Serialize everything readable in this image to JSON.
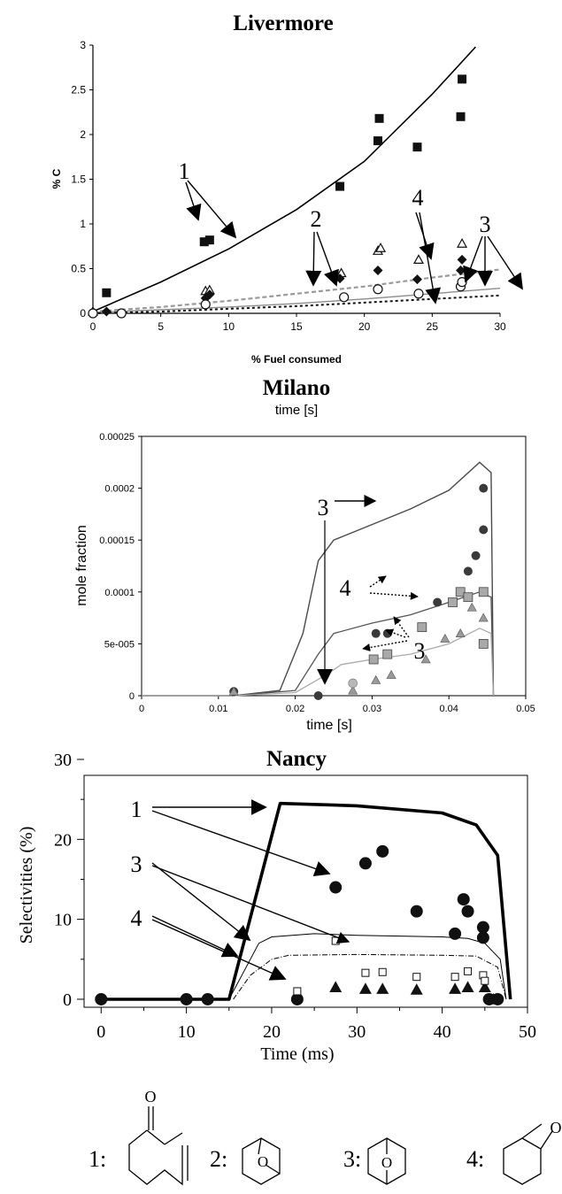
{
  "chart_data": [
    {
      "id": "livermore",
      "type": "scatter",
      "title": "Livermore",
      "xlabel": "% Fuel consumed",
      "ylabel": "% C",
      "xlim": [
        0,
        30
      ],
      "ylim": [
        0,
        3
      ],
      "xticks": [
        "0",
        "5",
        "10",
        "15",
        "20",
        "25",
        "30"
      ],
      "yticks": [
        "0",
        "0.5",
        "1",
        "1.5",
        "2",
        "2.5",
        "3"
      ],
      "series": [
        {
          "marker": "filled-square",
          "x": [
            1,
            8.2,
            8.6,
            18.2,
            21,
            21.1,
            23.9,
            27.1,
            27.2
          ],
          "y": [
            0.23,
            0.8,
            0.82,
            1.42,
            1.93,
            2.18,
            1.86,
            2.2,
            2.62
          ]
        },
        {
          "marker": "open-triangle",
          "x": [
            0,
            8.3,
            8.6,
            18.3,
            21,
            21.2,
            24,
            27.2
          ],
          "y": [
            0.02,
            0.25,
            0.26,
            0.45,
            0.7,
            0.73,
            0.6,
            0.78
          ]
        },
        {
          "marker": "filled-diamond",
          "x": [
            1,
            8.3,
            8.6,
            18.2,
            21,
            23.9,
            27.1,
            27.2
          ],
          "y": [
            0.02,
            0.17,
            0.21,
            0.39,
            0.48,
            0.38,
            0.48,
            0.6
          ]
        },
        {
          "marker": "open-circle",
          "x": [
            0,
            2.1,
            8.3,
            18.5,
            21,
            24,
            27.1,
            27.2
          ],
          "y": [
            0,
            0,
            0.1,
            0.18,
            0.27,
            0.22,
            0.3,
            0.35
          ]
        }
      ],
      "curves": [
        {
          "style": "solid-black",
          "x": [
            0,
            5,
            10,
            15,
            20,
            25,
            28.2
          ],
          "y": [
            0.02,
            0.35,
            0.72,
            1.16,
            1.7,
            2.45,
            2.98
          ]
        },
        {
          "style": "dashed-gray",
          "x": [
            0,
            5,
            10,
            15,
            20,
            25,
            30
          ],
          "y": [
            0.02,
            0.07,
            0.14,
            0.22,
            0.3,
            0.4,
            0.49
          ]
        },
        {
          "style": "solid-gray",
          "x": [
            0,
            5,
            10,
            15,
            20,
            25,
            30
          ],
          "y": [
            0.01,
            0.04,
            0.07,
            0.11,
            0.16,
            0.22,
            0.28
          ]
        },
        {
          "style": "dotted-black",
          "x": [
            0,
            5,
            10,
            15,
            20,
            25,
            30
          ],
          "y": [
            0,
            0.02,
            0.05,
            0.08,
            0.12,
            0.16,
            0.2
          ]
        }
      ],
      "annotations": [
        {
          "text": "1"
        },
        {
          "text": "2"
        },
        {
          "text": "4"
        },
        {
          "text": "3"
        }
      ]
    },
    {
      "id": "milano",
      "type": "line",
      "title": "Milano",
      "top_label": "time [s]",
      "xlabel": "time [s]",
      "ylabel": "mole fraction",
      "xlim": [
        0,
        0.05
      ],
      "ylim": [
        0,
        0.00025
      ],
      "xticks": [
        "0",
        "0.01",
        "0.02",
        "0.03",
        "0.04",
        "0.05"
      ],
      "yticks": [
        "0",
        "5e-005",
        "0.0001",
        "0.00015",
        "0.0002",
        "0.00025"
      ],
      "curves": [
        {
          "style": "dark",
          "x": [
            0,
            0.012,
            0.018,
            0.021,
            0.023,
            0.025,
            0.03,
            0.035,
            0.04,
            0.044,
            0.0455,
            0.0458
          ],
          "y": [
            0,
            0,
            5e-06,
            6e-05,
            0.00013,
            0.00015,
            0.000165,
            0.00018,
            0.000198,
            0.000225,
            0.000215,
            0
          ]
        },
        {
          "style": "medium",
          "x": [
            0,
            0.012,
            0.02,
            0.023,
            0.025,
            0.03,
            0.035,
            0.04,
            0.044,
            0.0455,
            0.0458
          ],
          "y": [
            0,
            0,
            5e-06,
            4e-05,
            6e-05,
            7e-05,
            7.8e-05,
            9e-05,
            0.0001,
            9.5e-05,
            0
          ]
        },
        {
          "style": "light",
          "x": [
            0,
            0.012,
            0.02,
            0.024,
            0.026,
            0.03,
            0.035,
            0.04,
            0.044,
            0.0455,
            0.0458
          ],
          "y": [
            0,
            0,
            3e-06,
            2e-05,
            3e-05,
            3.5e-05,
            4e-05,
            5e-05,
            6.5e-05,
            6e-05,
            0
          ]
        }
      ],
      "series": [
        {
          "marker": "dark-circle",
          "x": [
            0.012,
            0.023,
            0.0305,
            0.032,
            0.0385,
            0.0425,
            0.0435,
            0.0445,
            0.0445
          ],
          "y": [
            4e-06,
            0,
            6e-05,
            6e-05,
            9e-05,
            0.00012,
            0.000135,
            0.00016,
            0.0002
          ]
        },
        {
          "marker": "gray-square",
          "x": [
            0.0302,
            0.032,
            0.0365,
            0.0405,
            0.0415,
            0.0425,
            0.0445,
            0.0445
          ],
          "y": [
            3.5e-05,
            4e-05,
            6.6e-05,
            9e-05,
            0.0001,
            9.5e-05,
            0.0001,
            5e-05
          ]
        },
        {
          "marker": "gray-triangle",
          "x": [
            0.012,
            0.0275,
            0.0305,
            0.0325,
            0.037,
            0.0395,
            0.0415,
            0.043,
            0.0445
          ],
          "y": [
            4e-06,
            5e-06,
            1.5e-05,
            2e-05,
            3.5e-05,
            5.5e-05,
            6e-05,
            8.5e-05,
            7.5e-05
          ]
        },
        {
          "marker": "light-circle",
          "x": [
            0.0275
          ],
          "y": [
            1.2e-05
          ]
        }
      ],
      "annotations": [
        {
          "text": "3"
        },
        {
          "text": "4"
        },
        {
          "text": "3"
        }
      ]
    },
    {
      "id": "nancy",
      "type": "line",
      "title": "Nancy",
      "xlabel": "Time (ms)",
      "ylabel": "Selectivities (%)",
      "xlim": [
        -2,
        50
      ],
      "ylim": [
        -1,
        30
      ],
      "xticks": [
        "0",
        "10",
        "20",
        "30",
        "40",
        "50"
      ],
      "yticks": [
        "0",
        "10",
        "20",
        "30"
      ],
      "curves": [
        {
          "style": "thick-black",
          "x": [
            0,
            15,
            21,
            30,
            40,
            44,
            46.5,
            48
          ],
          "y": [
            0,
            0,
            24.5,
            24.2,
            23.3,
            21.8,
            18,
            0
          ]
        },
        {
          "style": "thin-black",
          "x": [
            15,
            17,
            18.5,
            20,
            25,
            30,
            35,
            40,
            43,
            45,
            46.8,
            47.5
          ],
          "y": [
            0,
            4,
            7,
            7.8,
            8.2,
            8,
            7.9,
            7.8,
            7.6,
            7,
            5,
            0
          ]
        },
        {
          "style": "dash-dot",
          "x": [
            15.5,
            17.5,
            20,
            22,
            30,
            40,
            44,
            46.5,
            47.5
          ],
          "y": [
            0,
            3,
            5,
            5.5,
            5.6,
            5.5,
            5.4,
            4,
            0
          ]
        }
      ],
      "series": [
        {
          "marker": "filled-circle",
          "x": [
            0,
            10,
            12.5,
            23,
            27.5,
            31,
            33,
            37,
            41.5,
            42.5,
            43,
            44.8,
            44.8,
            45.5,
            46.5
          ],
          "y": [
            0,
            0,
            0,
            0,
            14,
            17,
            18.5,
            11,
            8.2,
            12.5,
            11,
            7.7,
            9,
            0,
            0
          ]
        },
        {
          "marker": "filled-triangle",
          "x": [
            27.5,
            31,
            33,
            37,
            41.5,
            43,
            45,
            46
          ],
          "y": [
            1.5,
            1.3,
            1.3,
            1.2,
            1.3,
            1.5,
            1.5,
            0
          ]
        },
        {
          "marker": "open-square",
          "x": [
            23,
            27.5,
            31,
            33,
            37,
            41.5,
            43,
            44.8,
            45
          ],
          "y": [
            1,
            7.3,
            3.3,
            3.4,
            2.8,
            2.8,
            3.5,
            3,
            2.3
          ]
        }
      ],
      "annotations": [
        {
          "text": "1"
        },
        {
          "text": "3"
        },
        {
          "text": "4"
        }
      ]
    }
  ],
  "structures": [
    {
      "label": "1:"
    },
    {
      "label": "2:",
      "atom": "O"
    },
    {
      "label": "3:",
      "atom": "O"
    },
    {
      "label": "4:"
    }
  ],
  "structure_atoms": {
    "carbonyl_o": "O",
    "epoxide_o": "O"
  }
}
